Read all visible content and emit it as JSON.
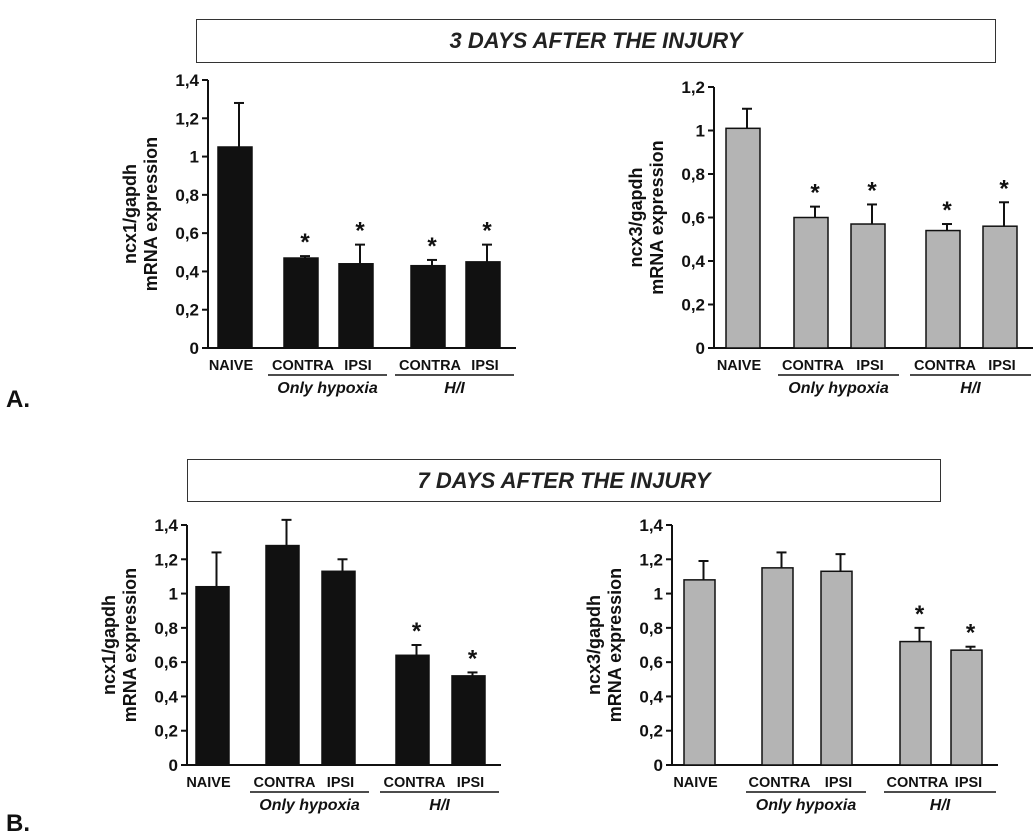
{
  "panels": [
    {
      "letter": "A.",
      "title": "3 DAYS AFTER THE INJURY",
      "charts": [
        {
          "type": "bar",
          "ylabel_line1": "ncx1/gapdh",
          "ylabel_line2": "mRNA expression",
          "categories": [
            "NAIVE",
            "CONTRA",
            "IPSI",
            "CONTRA",
            "IPSI"
          ],
          "values": [
            1.05,
            0.47,
            0.44,
            0.43,
            0.45
          ],
          "errors": [
            0.23,
            0.01,
            0.1,
            0.03,
            0.09
          ],
          "significant": [
            false,
            true,
            true,
            true,
            true
          ],
          "ylim": [
            0,
            1.4
          ],
          "yticks": [
            "0",
            "0,2",
            "0,4",
            "0,6",
            "0,8",
            "1",
            "1,2",
            "1,4"
          ],
          "group_labels": [
            "Only hypoxia",
            "H/I"
          ],
          "star": "*"
        },
        {
          "type": "bar",
          "ylabel_line1": "ncx3/gapdh",
          "ylabel_line2": "mRNA expression",
          "categories": [
            "NAIVE",
            "CONTRA",
            "IPSI",
            "CONTRA",
            "IPSI"
          ],
          "values": [
            1.01,
            0.6,
            0.57,
            0.54,
            0.56
          ],
          "errors": [
            0.09,
            0.05,
            0.09,
            0.03,
            0.11
          ],
          "significant": [
            false,
            true,
            true,
            true,
            true
          ],
          "ylim": [
            0,
            1.2
          ],
          "yticks": [
            "0",
            "0,2",
            "0,4",
            "0,6",
            "0,8",
            "1",
            "1,2"
          ],
          "group_labels": [
            "Only hypoxia",
            "H/I"
          ],
          "star": "*"
        }
      ]
    },
    {
      "letter": "B.",
      "title": "7 DAYS AFTER THE INJURY",
      "charts": [
        {
          "type": "bar",
          "ylabel_line1": "ncx1/gapdh",
          "ylabel_line2": "mRNA expression",
          "categories": [
            "NAIVE",
            "CONTRA",
            "IPSI",
            "CONTRA",
            "IPSI"
          ],
          "values": [
            1.04,
            1.28,
            1.13,
            0.64,
            0.52
          ],
          "errors": [
            0.2,
            0.15,
            0.07,
            0.06,
            0.02
          ],
          "significant": [
            false,
            false,
            false,
            true,
            true
          ],
          "ylim": [
            0,
            1.4
          ],
          "yticks": [
            "0",
            "0,2",
            "0,4",
            "0,6",
            "0,8",
            "1",
            "1,2",
            "1,4"
          ],
          "group_labels": [
            "Only hypoxia",
            "H/I"
          ],
          "star": "*"
        },
        {
          "type": "bar",
          "ylabel_line1": "ncx3/gapdh",
          "ylabel_line2": "mRNA expression",
          "categories": [
            "NAIVE",
            "CONTRA",
            "IPSI",
            "CONTRA",
            "IPSI"
          ],
          "values": [
            1.08,
            1.15,
            1.13,
            0.72,
            0.67
          ],
          "errors": [
            0.11,
            0.09,
            0.1,
            0.08,
            0.02
          ],
          "significant": [
            false,
            false,
            false,
            true,
            true
          ],
          "ylim": [
            0,
            1.4
          ],
          "yticks": [
            "0",
            "0,2",
            "0,4",
            "0,6",
            "0,8",
            "1",
            "1,2",
            "1,4"
          ],
          "group_labels": [
            "Only hypoxia",
            "H/I"
          ],
          "star": "*"
        }
      ]
    }
  ],
  "colors": {
    "ncx1_bar": "#111111",
    "ncx3_bar": "#b4b4b4",
    "axis": "#111111"
  }
}
